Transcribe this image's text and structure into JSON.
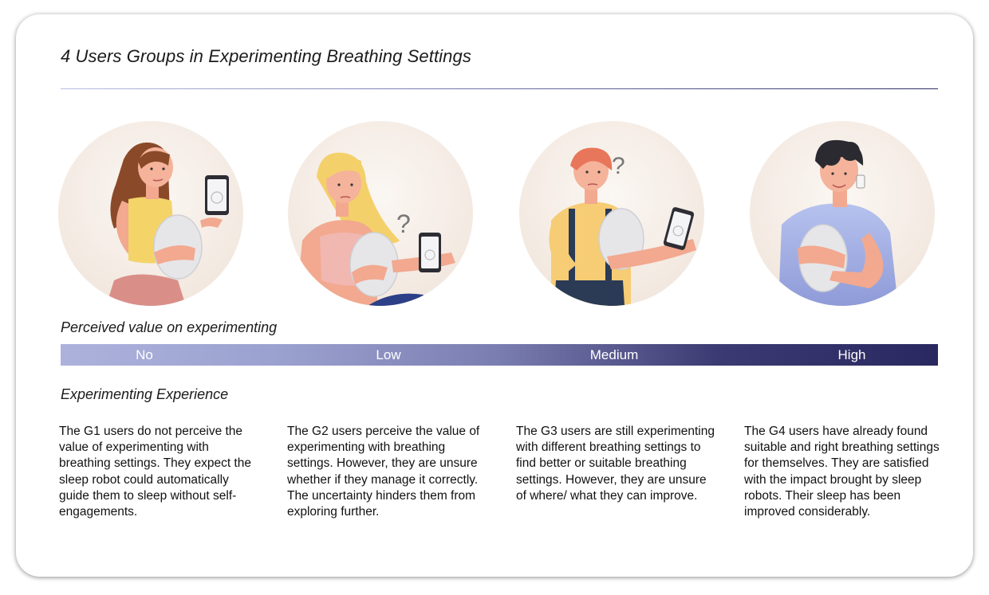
{
  "title": "4 Users Groups in Experimenting Breathing Settings",
  "perceived_label": "Perceived value on experimenting",
  "levels": [
    "No",
    "Low",
    "Medium",
    "High"
  ],
  "experience_label": "Experimenting Experience",
  "groups": [
    {
      "description": "The G1 users do not perceive the value of experimenting with breathing settings. They expect the sleep robot could automatically guide them to sleep without self-engagements."
    },
    {
      "description": "The G2 users perceive the value of experimenting with breathing settings. However, they are unsure whether if they manage it correctly. The uncertainty hinders them from exploring further."
    },
    {
      "description": "The G3 users are still experimenting with different breathing settings to find better or suitable breathing settings. However, they are unsure of where/ what they can improve."
    },
    {
      "description": "The G4 users have already found suitable and right breathing settings for themselves. They are satisfied with the impact brought by sleep robots. Their sleep has been improved considerably."
    }
  ],
  "question_mark": "?",
  "colors": {
    "bar_start": "#adb2dc",
    "bar_end": "#2a2860",
    "circle_bg": "#f6efea"
  }
}
